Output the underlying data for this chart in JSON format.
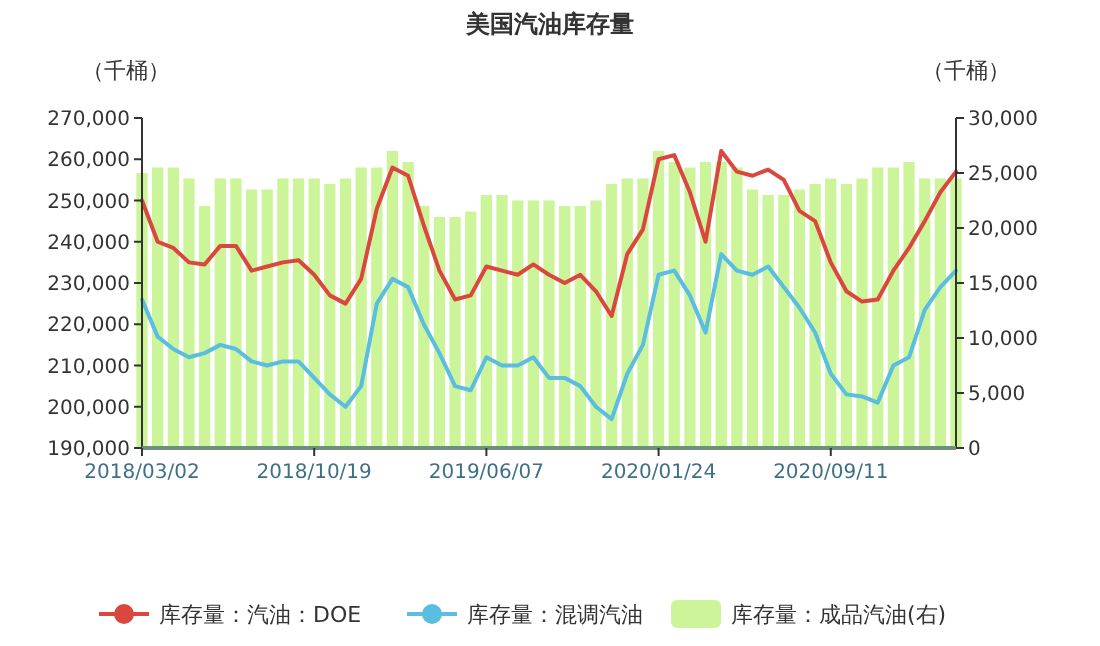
{
  "chart_data": {
    "type": "line",
    "title": "美国汽油库存量",
    "ylabel": "（千桶）",
    "y2label": "（千桶）",
    "x": [
      "2018-03-02",
      "2018-03-23",
      "2018-04-13",
      "2018-05-04",
      "2018-05-25",
      "2018-06-15",
      "2018-07-06",
      "2018-07-27",
      "2018-08-17",
      "2018-09-07",
      "2018-09-28",
      "2018-10-19",
      "2018-11-09",
      "2018-11-30",
      "2018-12-21",
      "2019-01-11",
      "2019-02-01",
      "2019-02-22",
      "2019-03-15",
      "2019-04-05",
      "2019-04-26",
      "2019-05-17",
      "2019-06-07",
      "2019-06-28",
      "2019-07-19",
      "2019-08-09",
      "2019-08-30",
      "2019-09-20",
      "2019-10-11",
      "2019-11-01",
      "2019-11-22",
      "2019-12-13",
      "2020-01-03",
      "2020-01-24",
      "2020-02-14",
      "2020-03-06",
      "2020-03-27",
      "2020-04-17",
      "2020-05-08",
      "2020-05-29",
      "2020-06-19",
      "2020-07-10",
      "2020-07-31",
      "2020-08-21",
      "2020-09-11",
      "2020-10-02",
      "2020-10-23",
      "2020-11-13",
      "2020-12-04",
      "2020-12-25",
      "2021-01-15",
      "2021-02-05",
      "2021-02-26"
    ],
    "series": [
      {
        "name": "库存量：汽油：DOE",
        "color": "#d9473f",
        "values": [
          250000,
          240000,
          238500,
          235000,
          234500,
          239000,
          239000,
          233000,
          234000,
          235000,
          235500,
          232000,
          227000,
          225000,
          231000,
          248000,
          258000,
          256000,
          244000,
          233000,
          226000,
          227000,
          234000,
          233000,
          232000,
          234500,
          232000,
          230000,
          232000,
          228000,
          222000,
          237000,
          243000,
          260000,
          261000,
          252000,
          240000,
          262000,
          257000,
          256000,
          257500,
          255000,
          247500,
          245000,
          235000,
          228000,
          225500,
          226000,
          233000,
          238500,
          245000,
          252000,
          257000
        ]
      },
      {
        "name": "库存量：混调汽油",
        "color": "#5bbde0",
        "values": [
          226000,
          217000,
          214000,
          212000,
          213000,
          215000,
          214000,
          211000,
          210000,
          211000,
          211000,
          207000,
          203000,
          200000,
          205000,
          225000,
          231000,
          229000,
          220000,
          213000,
          205000,
          204000,
          212000,
          210000,
          210000,
          212000,
          207000,
          207000,
          205000,
          200000,
          197000,
          208000,
          215000,
          232000,
          233000,
          227000,
          218000,
          237000,
          233000,
          232000,
          234000,
          229000,
          224000,
          218000,
          208000,
          203000,
          202500,
          201000,
          210000,
          212000,
          223500,
          229000,
          233000
        ]
      },
      {
        "name": "库存量：成品汽油(右)",
        "type": "bar",
        "axis": "y2",
        "color": "#ccf59a",
        "values": [
          25000,
          25500,
          25500,
          24500,
          22000,
          24500,
          24500,
          23500,
          23500,
          24500,
          24500,
          24500,
          24000,
          24500,
          25500,
          25500,
          27000,
          26000,
          22000,
          21000,
          21000,
          21500,
          23000,
          23000,
          22500,
          22500,
          22500,
          22000,
          22000,
          22500,
          24000,
          24500,
          24500,
          27000,
          26000,
          25500,
          26000,
          26000,
          25500,
          23500,
          23000,
          23000,
          23500,
          24000,
          24500,
          24000,
          24500,
          25500,
          25500,
          26000,
          24500,
          24500,
          24500
        ]
      }
    ],
    "xlim": [
      "2018-03-02",
      "2021-02-26"
    ],
    "xticks": [
      {
        "value": "2018-03-02",
        "label": "2018/03/02"
      },
      {
        "value": "2018-10-19",
        "label": "2018/10/19"
      },
      {
        "value": "2019-06-07",
        "label": "2019/06/07"
      },
      {
        "value": "2020-01-24",
        "label": "2020/01/24"
      },
      {
        "value": "2020-09-11",
        "label": "2020/09/11"
      }
    ],
    "ylim": [
      190000,
      270000
    ],
    "yticks": [
      {
        "value": 190000,
        "label": "190,000"
      },
      {
        "value": 200000,
        "label": "200,000"
      },
      {
        "value": 210000,
        "label": "210,000"
      },
      {
        "value": 220000,
        "label": "220,000"
      },
      {
        "value": 230000,
        "label": "230,000"
      },
      {
        "value": 240000,
        "label": "240,000"
      },
      {
        "value": 250000,
        "label": "250,000"
      },
      {
        "value": 260000,
        "label": "260,000"
      },
      {
        "value": 270000,
        "label": "270,000"
      }
    ],
    "y2lim": [
      0,
      30000
    ],
    "y2ticks": [
      0,
      {
        "value": 5000,
        "label": "5,000"
      },
      {
        "value": 10000,
        "label": "10,000"
      },
      {
        "value": 15000,
        "label": "15,000"
      },
      {
        "value": 20000,
        "label": "20,000"
      },
      {
        "value": 25000,
        "label": "25,000"
      },
      {
        "value": 30000,
        "label": "30,000"
      }
    ],
    "grid": false,
    "legend": "bottom",
    "marker": "none",
    "line_style": "solid"
  }
}
